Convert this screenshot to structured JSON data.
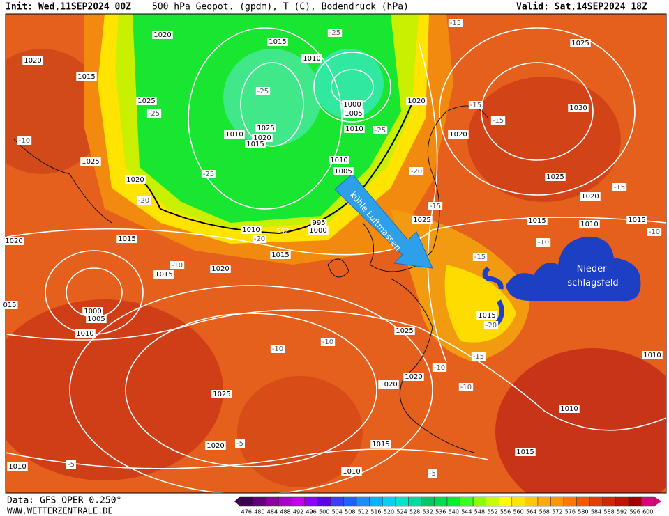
{
  "header": {
    "init": "Init: Wed,11SEP2024 00Z",
    "title": "500 hPa Geopot. (gpdm), T (C), Bodendruck (hPa)",
    "valid": "Valid: Sat,14SEP2024 18Z"
  },
  "footer": {
    "data": "Data: GFS OPER 0.250°",
    "site": "WWW.WETTERZENTRALE.DE"
  },
  "annotations": {
    "arrow": "kühle Luftmassen",
    "cloud": [
      "Nieder-",
      "schlagsfeld"
    ]
  },
  "contour_label": "552",
  "isobars": [
    1020,
    1020,
    1015,
    1025,
    1015,
    1010,
    1000,
    1005,
    1010,
    1025,
    1020,
    1015,
    1010,
    1020,
    1020,
    1025,
    1030,
    1025,
    1020,
    1025,
    1020,
    1015,
    1010,
    1015,
    1010,
    1005,
    995,
    1000,
    1010,
    1025,
    1015,
    1020,
    1015,
    1020,
    1015,
    1000,
    1005,
    1010,
    "015",
    1025,
    1015,
    1020,
    1020,
    1025,
    1020,
    1015,
    1010,
    1015,
    1010,
    1010,
    1010
  ],
  "temperatures": [
    -25,
    -25,
    -25,
    -10,
    -20,
    -25,
    -20,
    -25,
    -20,
    -15,
    -15,
    -15,
    -15,
    -15,
    -10,
    -15,
    -10,
    -10,
    -10,
    -10,
    -15,
    -10,
    -5,
    -5,
    -5,
    -20,
    -10
  ],
  "colorbar": {
    "values": [
      476,
      480,
      484,
      488,
      492,
      496,
      500,
      504,
      508,
      512,
      516,
      520,
      524,
      528,
      532,
      536,
      540,
      544,
      548,
      552,
      556,
      560,
      564,
      568,
      572,
      576,
      580,
      584,
      588,
      592,
      596,
      600
    ],
    "colors": [
      "#3c0050",
      "#600078",
      "#8a00a0",
      "#a800c8",
      "#c000e6",
      "#8c00ff",
      "#5a00f0",
      "#3c3cff",
      "#2060ff",
      "#1e8cff",
      "#00b4ff",
      "#00d2f0",
      "#00e6c8",
      "#00dca0",
      "#00c864",
      "#00dc50",
      "#00f032",
      "#3cff1e",
      "#8cff00",
      "#c8ff00",
      "#ffff00",
      "#ffe600",
      "#ffc800",
      "#ffaa00",
      "#ff9600",
      "#ff7800",
      "#f05a00",
      "#e04000",
      "#d02800",
      "#c01400",
      "#a00000",
      "#e0007a"
    ]
  }
}
